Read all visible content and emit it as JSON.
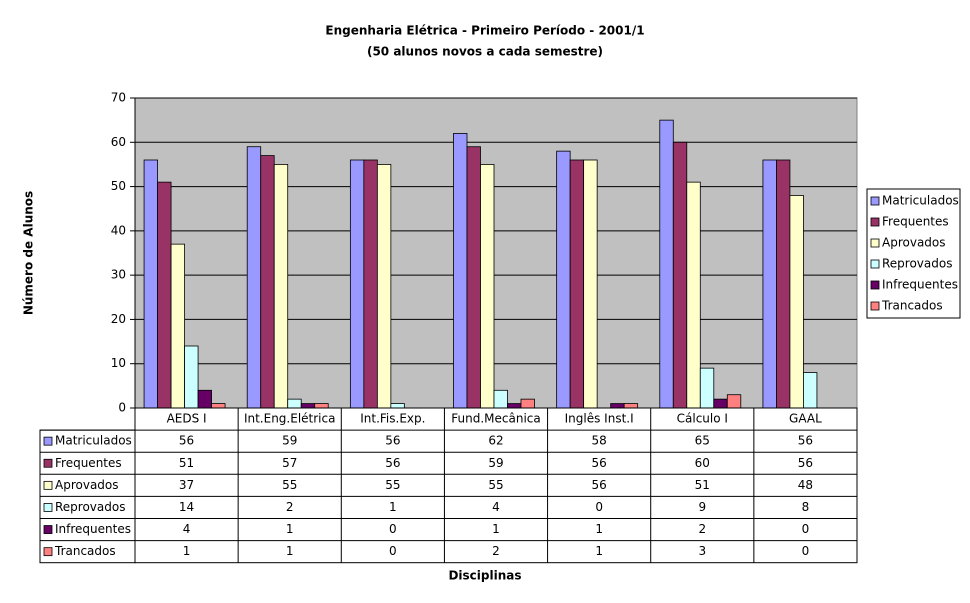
{
  "chart_data": {
    "type": "bar",
    "title": "Engenharia Elétrica - Primeiro Período - 2001/1",
    "subtitle": "(50 alunos novos a cada semestre)",
    "x_label": "Disciplinas",
    "y_label": "Número de Alunos",
    "categories": [
      "AEDS I",
      "Int.Eng.Elétrica",
      "Int.Fis.Exp.",
      "Fund.Mecânica",
      "Inglês Inst.I",
      "Cálculo I",
      "GAAL"
    ],
    "series": [
      {
        "name": "Matriculados",
        "color": "#9999ff",
        "values": [
          56,
          59,
          56,
          62,
          58,
          65,
          56
        ]
      },
      {
        "name": "Frequentes",
        "color": "#993366",
        "values": [
          51,
          57,
          56,
          59,
          56,
          60,
          56
        ]
      },
      {
        "name": "Aprovados",
        "color": "#ffffcc",
        "values": [
          37,
          55,
          55,
          55,
          56,
          51,
          48
        ]
      },
      {
        "name": "Reprovados",
        "color": "#ccffff",
        "values": [
          14,
          2,
          1,
          4,
          0,
          9,
          8
        ]
      },
      {
        "name": "Infrequentes",
        "color": "#660066",
        "values": [
          4,
          1,
          0,
          1,
          1,
          2,
          0
        ]
      },
      {
        "name": "Trancados",
        "color": "#ff8080",
        "values": [
          1,
          1,
          0,
          2,
          1,
          3,
          0
        ]
      }
    ],
    "ylim": [
      0,
      70
    ],
    "yticks": [
      0,
      10,
      20,
      30,
      40,
      50,
      60,
      70
    ],
    "grid": true,
    "legend": "right",
    "data_table": true
  }
}
